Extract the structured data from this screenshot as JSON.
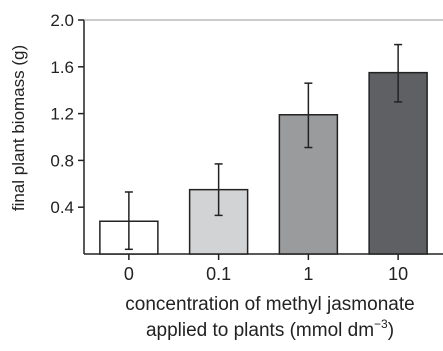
{
  "chart_data": {
    "type": "bar",
    "xlabel_line1": "concentration of methyl jasmonate",
    "xlabel_line2_main": "applied to plants (mmol dm",
    "xlabel_line2_sup": "−3",
    "xlabel_line2_close": ")",
    "ylabel": "final plant biomass (g)",
    "categories": [
      "0",
      "0.1",
      "1",
      "10"
    ],
    "values": [
      0.28,
      0.55,
      1.19,
      1.55
    ],
    "error_low": [
      0.04,
      0.33,
      0.91,
      1.3
    ],
    "error_high": [
      0.53,
      0.77,
      1.46,
      1.79
    ],
    "bar_colors": [
      "#ffffff",
      "#d2d3d5",
      "#9a9b9d",
      "#5f6063"
    ],
    "ylim": [
      0,
      2.0
    ],
    "yticks": [
      "0.4",
      "0.8",
      "1.2",
      "1.6",
      "2.0"
    ],
    "grid": false
  }
}
